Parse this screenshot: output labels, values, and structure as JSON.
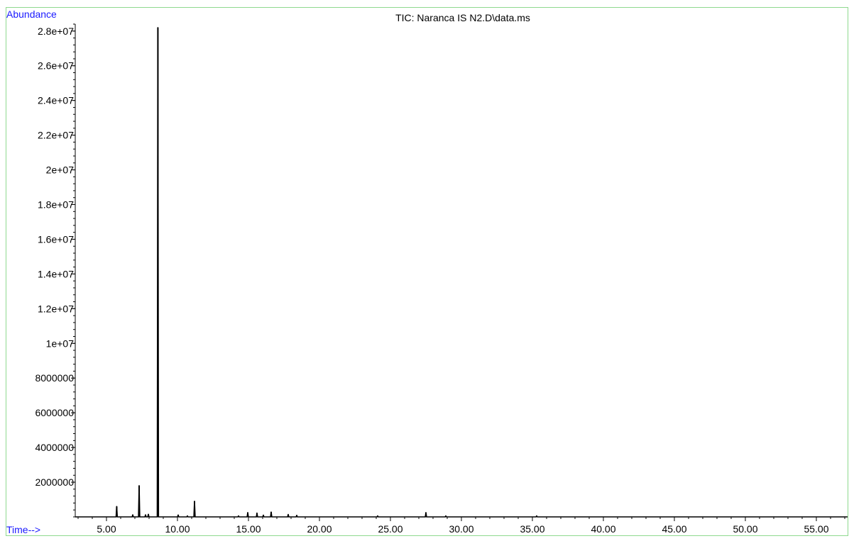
{
  "colors": {
    "border": "#8fd98f",
    "axis": "#000000",
    "trace": "#000000",
    "axis_label": "#1a1aff",
    "text": "#000000",
    "background": "#ffffff"
  },
  "chart_data": {
    "type": "line",
    "title": "TIC: Naranca IS N2.D\\data.ms",
    "ylabel": "Abundance",
    "xlabel": "Time-->",
    "xlim": [
      2.8,
      57.2
    ],
    "ylim": [
      0,
      28400000
    ],
    "x_ticks": [
      5.0,
      10.0,
      15.0,
      20.0,
      25.0,
      30.0,
      35.0,
      40.0,
      45.0,
      50.0,
      55.0
    ],
    "x_tick_labels": [
      "5.00",
      "10.00",
      "15.00",
      "20.00",
      "25.00",
      "30.00",
      "35.00",
      "40.00",
      "45.00",
      "50.00",
      "55.00"
    ],
    "y_ticks": [
      2000000,
      4000000,
      6000000,
      8000000,
      10000000,
      12000000,
      14000000,
      16000000,
      18000000,
      20000000,
      22000000,
      24000000,
      26000000,
      28000000
    ],
    "y_tick_labels": [
      "2000000",
      "4000000",
      "6000000",
      "8000000",
      "1e+07",
      "1.2e+07",
      "1.4e+07",
      "1.6e+07",
      "1.8e+07",
      "2e+07",
      "2.2e+07",
      "2.4e+07",
      "2.6e+07",
      "2.8e+07"
    ],
    "peaks": [
      {
        "x": 5.72,
        "y": 600000
      },
      {
        "x": 6.85,
        "y": 120000
      },
      {
        "x": 7.3,
        "y": 1800000
      },
      {
        "x": 7.75,
        "y": 120000
      },
      {
        "x": 7.95,
        "y": 150000
      },
      {
        "x": 8.62,
        "y": 28200000
      },
      {
        "x": 10.05,
        "y": 110000
      },
      {
        "x": 10.7,
        "y": 60000
      },
      {
        "x": 11.2,
        "y": 900000
      },
      {
        "x": 14.3,
        "y": 60000
      },
      {
        "x": 14.95,
        "y": 250000
      },
      {
        "x": 15.6,
        "y": 220000
      },
      {
        "x": 16.05,
        "y": 100000
      },
      {
        "x": 16.6,
        "y": 280000
      },
      {
        "x": 17.8,
        "y": 140000
      },
      {
        "x": 18.4,
        "y": 90000
      },
      {
        "x": 24.1,
        "y": 60000
      },
      {
        "x": 27.5,
        "y": 250000
      },
      {
        "x": 28.9,
        "y": 60000
      },
      {
        "x": 35.3,
        "y": 60000
      }
    ]
  }
}
